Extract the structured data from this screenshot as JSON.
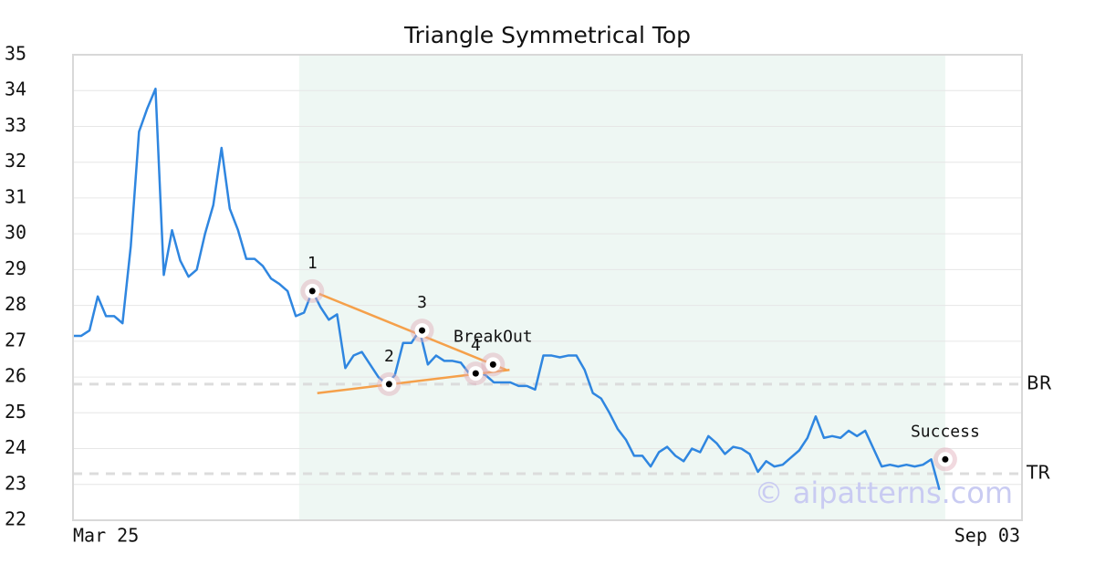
{
  "chart_data": {
    "type": "line",
    "title": "Triangle Symmetrical Top",
    "color": "#2f86e0",
    "values": [
      27.15,
      27.15,
      27.3,
      28.25,
      27.7,
      27.7,
      27.5,
      29.65,
      32.85,
      33.5,
      34.05,
      28.85,
      30.1,
      29.25,
      28.8,
      29.0,
      30.0,
      30.8,
      32.4,
      30.7,
      30.1,
      29.3,
      29.3,
      29.1,
      28.75,
      28.6,
      28.4,
      27.7,
      27.8,
      28.4,
      27.95,
      27.6,
      27.75,
      26.25,
      26.6,
      26.7,
      26.35,
      26.0,
      25.8,
      26.05,
      26.95,
      26.95,
      27.3,
      26.35,
      26.6,
      26.45,
      26.45,
      26.4,
      26.1,
      26.15,
      26.05,
      25.85,
      25.85,
      25.85,
      25.75,
      25.75,
      25.65,
      26.6,
      26.6,
      26.55,
      26.6,
      26.6,
      26.2,
      25.55,
      25.4,
      25.0,
      24.55,
      24.25,
      23.8,
      23.8,
      23.5,
      23.9,
      24.05,
      23.8,
      23.65,
      24.0,
      23.9,
      24.35,
      24.15,
      23.85,
      24.05,
      24.0,
      23.85,
      23.35,
      23.65,
      23.5,
      23.55,
      23.75,
      23.95,
      24.3,
      24.9,
      24.3,
      24.35,
      24.3,
      24.5,
      24.35,
      24.5,
      24.0,
      23.5,
      23.55,
      23.5,
      23.55,
      23.5,
      23.55,
      23.7,
      22.85
    ],
    "xlim": [
      0,
      115
    ],
    "xticks": [
      {
        "value": 0,
        "label": "Mar 25"
      },
      {
        "value": 115,
        "label": "Sep 03"
      }
    ],
    "ylim": [
      22,
      35
    ],
    "yticks": [
      22,
      23,
      24,
      25,
      26,
      27,
      28,
      29,
      30,
      31,
      32,
      33,
      34,
      35
    ],
    "grid": true,
    "pattern_range": [
      27.4,
      105.7
    ],
    "levels": [
      {
        "label": "BR",
        "value": 25.8
      },
      {
        "label": "TR",
        "value": 23.3
      }
    ],
    "trendlines": [
      {
        "color": "#f5a04a",
        "x": [
          29,
          52.5
        ],
        "y": [
          28.4,
          26.2
        ]
      },
      {
        "color": "#f5a04a",
        "x": [
          29.6,
          52.9
        ],
        "y": [
          25.55,
          26.2
        ]
      }
    ],
    "annotations": [
      {
        "label": "1",
        "x": 29,
        "y": 28.4
      },
      {
        "label": "2",
        "x": 38.3,
        "y": 25.8
      },
      {
        "label": "3",
        "x": 42.3,
        "y": 27.3
      },
      {
        "label": "4",
        "x": 48.8,
        "y": 26.1
      },
      {
        "label": "BreakOut",
        "x": 50.9,
        "y": 26.35
      },
      {
        "label": "Success",
        "x": 105.7,
        "y": 23.7
      }
    ],
    "watermark": "© aipatterns.com"
  }
}
